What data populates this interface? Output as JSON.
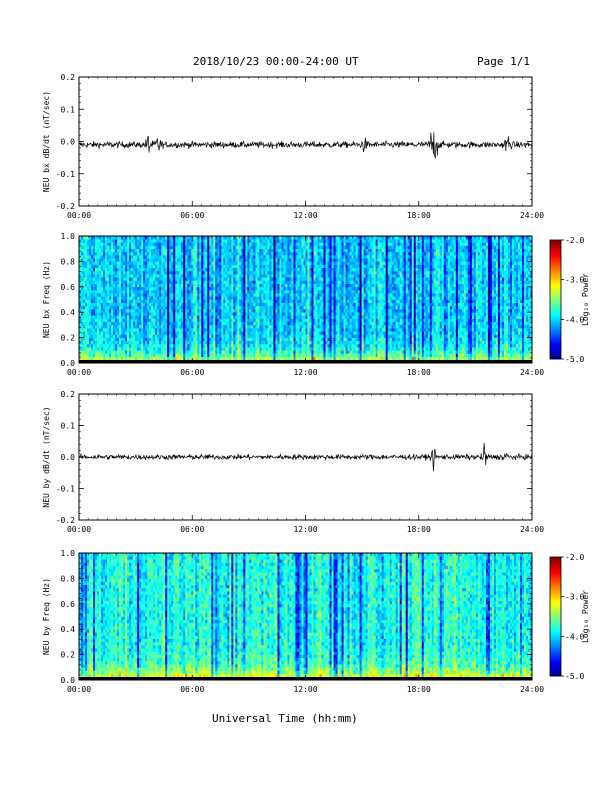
{
  "header": {
    "title": "2018/10/23  00:00-24:00 UT",
    "page": "Page 1/1"
  },
  "x_axis_title": "Universal Time (hh:mm)",
  "chart_data": [
    {
      "type": "line",
      "ylabel": "NEU bx dB/dt (nT/sec)",
      "xlim": [
        0,
        24
      ],
      "ylim": [
        -0.2,
        0.2
      ],
      "x_ticks": [
        "00:00",
        "06:00",
        "12:00",
        "18:00",
        "24:00"
      ],
      "y_ticks": [
        "-0.2",
        "-0.1",
        "0.0",
        "0.1",
        "0.2"
      ],
      "baseline": -0.01,
      "noise_amplitude": 0.012,
      "bursts": [
        {
          "t": 3.7,
          "amp": 0.045
        },
        {
          "t": 4.2,
          "amp": 0.035
        },
        {
          "t": 15.1,
          "amp": 0.02
        },
        {
          "t": 18.7,
          "amp": 0.06
        },
        {
          "t": 18.9,
          "amp": 0.05
        },
        {
          "t": 22.7,
          "amp": 0.045
        }
      ],
      "series": [
        {
          "color": "#000000"
        }
      ]
    },
    {
      "type": "heatmap",
      "ylabel": "NEU bx Freq (Hz)",
      "xlim": [
        0,
        24
      ],
      "ylim": [
        0.0,
        1.0
      ],
      "x_ticks": [
        "00:00",
        "06:00",
        "12:00",
        "18:00",
        "24:00"
      ],
      "y_ticks": [
        "0.0",
        "0.2",
        "0.4",
        "0.6",
        "0.8",
        "1.0"
      ],
      "colorbar": {
        "label": "Log₁₀ Power",
        "range": [
          -5.0,
          -2.0
        ],
        "ticks": [
          "-2.0",
          "-3.0",
          "-4.0",
          "-5.0"
        ]
      },
      "typical_log_power": -4.0,
      "low_freq_enhancement": -3.0
    },
    {
      "type": "line",
      "ylabel": "NEU by dB/dt (nT/sec)",
      "xlim": [
        0,
        24
      ],
      "ylim": [
        -0.2,
        0.2
      ],
      "x_ticks": [
        "00:00",
        "06:00",
        "12:00",
        "18:00",
        "24:00"
      ],
      "y_ticks": [
        "-0.2",
        "-0.1",
        "0.0",
        "0.1",
        "0.2"
      ],
      "baseline": 0.0,
      "noise_amplitude": 0.01,
      "bursts": [
        {
          "t": 18.8,
          "amp": 0.04
        },
        {
          "t": 21.5,
          "amp": 0.045
        },
        {
          "t": 22.6,
          "amp": 0.025
        }
      ],
      "series": [
        {
          "color": "#000000"
        }
      ]
    },
    {
      "type": "heatmap",
      "ylabel": "NEU by Freq (Hz)",
      "xlim": [
        0,
        24
      ],
      "ylim": [
        0.0,
        1.0
      ],
      "x_ticks": [
        "00:00",
        "06:00",
        "12:00",
        "18:00",
        "24:00"
      ],
      "y_ticks": [
        "0.0",
        "0.2",
        "0.4",
        "0.6",
        "0.8",
        "1.0"
      ],
      "colorbar": {
        "label": "Log₁₀ Power",
        "range": [
          -5.0,
          -2.0
        ],
        "ticks": [
          "-2.0",
          "-3.0",
          "-4.0",
          "-5.0"
        ]
      },
      "typical_log_power": -3.8,
      "low_freq_enhancement": -2.8
    }
  ]
}
